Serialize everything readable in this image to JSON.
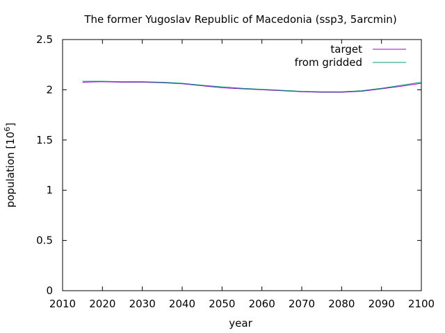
{
  "chart_data": {
    "type": "line",
    "title": "The former Yugoslav Republic of Macedonia (ssp3, 5arcmin)",
    "xlabel": "year",
    "ylabel": "population [10",
    "ylabel_sup": "6",
    "ylabel_close": "]",
    "xlim": [
      2010,
      2100
    ],
    "ylim": [
      0,
      2.5
    ],
    "xticks": [
      2010,
      2020,
      2030,
      2040,
      2050,
      2060,
      2070,
      2080,
      2090,
      2100
    ],
    "xtick_labels": [
      "2010",
      "2020",
      "2030",
      "2040",
      "2050",
      "2060",
      "2070",
      "2080",
      "2090",
      "2100"
    ],
    "yticks": [
      0,
      0.5,
      1,
      1.5,
      2,
      2.5
    ],
    "ytick_labels": [
      "0",
      "0.5",
      "1",
      "1.5",
      "2",
      "2.5"
    ],
    "grid": false,
    "legend_position": "top-right",
    "series": [
      {
        "name": "target",
        "color": "#9400d3",
        "x": [
          2015,
          2020,
          2025,
          2030,
          2035,
          2040,
          2045,
          2050,
          2055,
          2060,
          2065,
          2070,
          2075,
          2080,
          2085,
          2090,
          2095,
          2100
        ],
        "y": [
          2.075,
          2.08,
          2.075,
          2.075,
          2.07,
          2.06,
          2.04,
          2.02,
          2.01,
          2.0,
          1.99,
          1.98,
          1.975,
          1.975,
          1.985,
          2.01,
          2.035,
          2.065
        ]
      },
      {
        "name": "from gridded",
        "color": "#009e73",
        "x": [
          2015,
          2020,
          2025,
          2030,
          2035,
          2040,
          2045,
          2050,
          2055,
          2060,
          2065,
          2070,
          2075,
          2080,
          2085,
          2090,
          2095,
          2100
        ],
        "y": [
          2.085,
          2.085,
          2.08,
          2.08,
          2.075,
          2.065,
          2.045,
          2.03,
          2.015,
          2.005,
          1.995,
          1.985,
          1.98,
          1.98,
          1.99,
          2.015,
          2.045,
          2.075
        ]
      }
    ]
  }
}
